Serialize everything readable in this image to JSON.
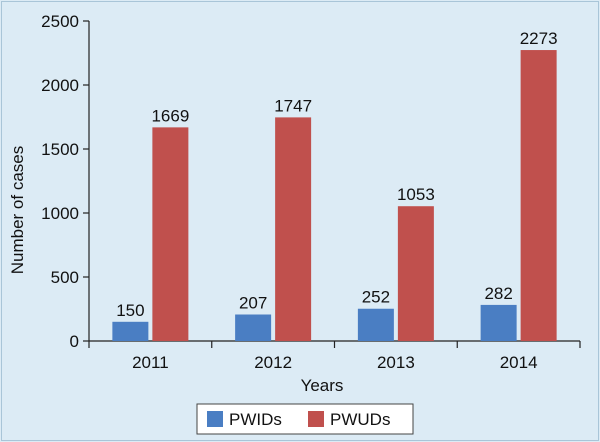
{
  "chart_data": {
    "type": "bar",
    "categories": [
      "2011",
      "2012",
      "2013",
      "2014"
    ],
    "series": [
      {
        "name": "PWIDs",
        "values": [
          150,
          207,
          252,
          282
        ],
        "color": "#4a7ec3"
      },
      {
        "name": "PWUDs",
        "values": [
          1669,
          1747,
          1053,
          2273
        ],
        "color": "#c0504d"
      }
    ],
    "xlabel": "Years",
    "ylabel": "Number of cases",
    "ylim": [
      0,
      2500
    ],
    "yticks": [
      "0",
      "500",
      "1000",
      "1500",
      "2000",
      "2500"
    ],
    "grid": false,
    "legend_position": "bottom-center"
  }
}
